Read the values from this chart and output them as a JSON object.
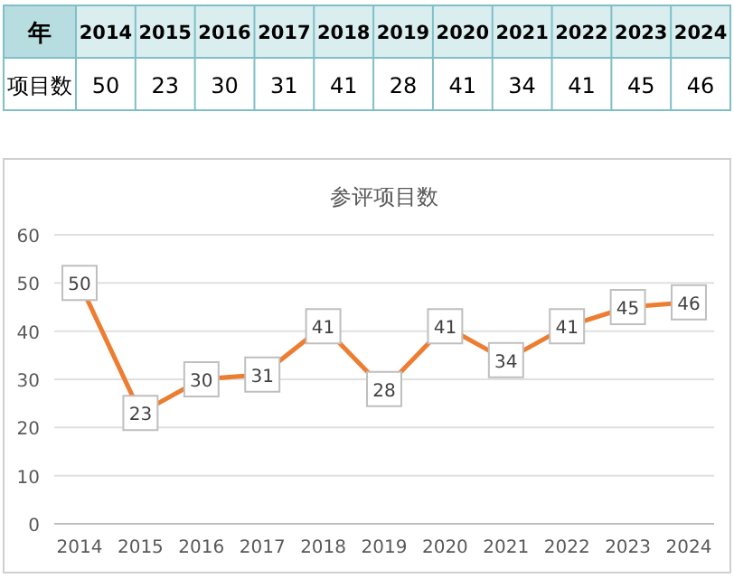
{
  "chart_data": {
    "type": "line",
    "title": "参评项目数",
    "annotations": [
      "年",
      "项目数",
      "50",
      "23",
      "30",
      "31",
      "41",
      "28",
      "41",
      "34",
      "41",
      "45",
      "46"
    ],
    "categories": [
      "2014",
      "2015",
      "2016",
      "2017",
      "2018",
      "2019",
      "2020",
      "2021",
      "2022",
      "2023",
      "2024"
    ],
    "values": [
      50,
      23,
      30,
      31,
      41,
      28,
      41,
      34,
      41,
      45,
      46
    ],
    "color": "#ed7d31",
    "ylim": [
      0,
      60
    ],
    "yticks": [
      0,
      10,
      20,
      30,
      40,
      50,
      60
    ],
    "grid": "y",
    "data_labels": true,
    "marker": "square",
    "line_style": "solid"
  }
}
